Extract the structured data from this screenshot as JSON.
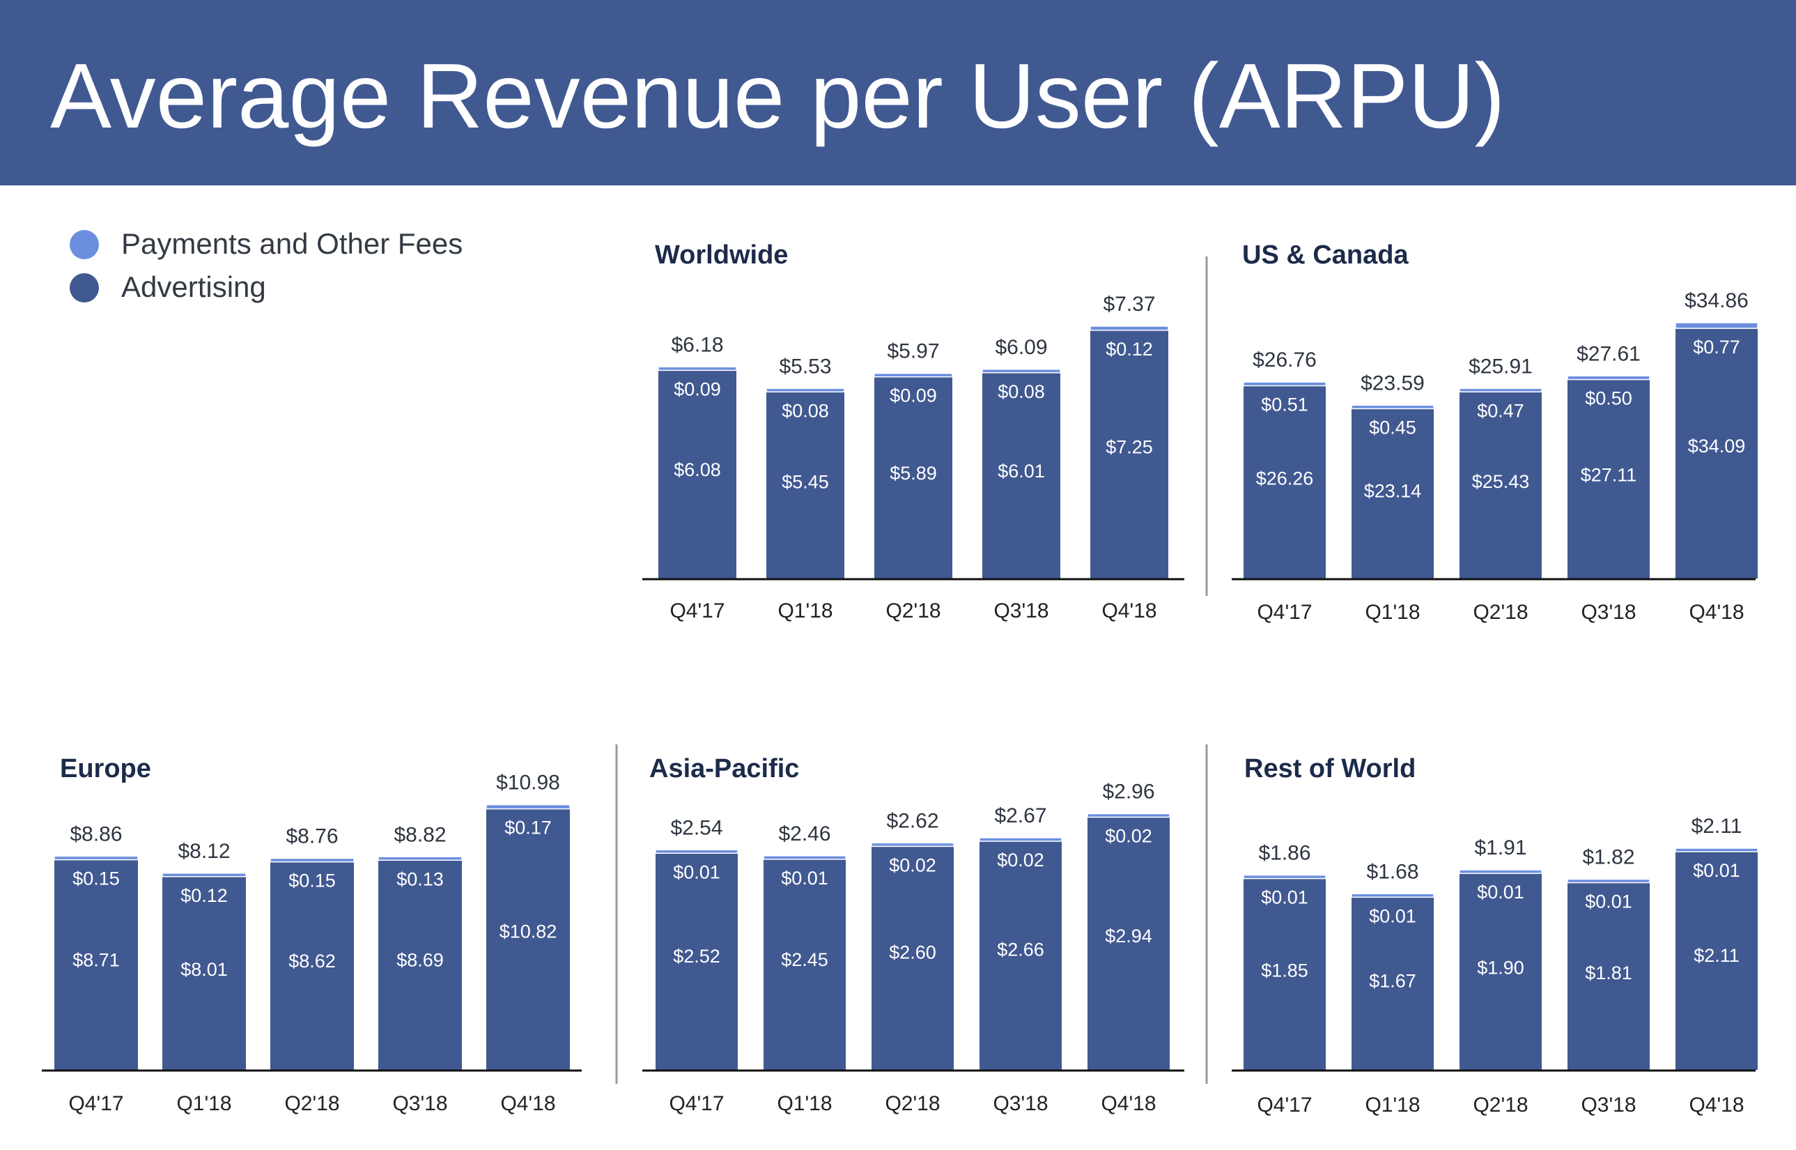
{
  "header": {
    "title": "Average Revenue per User (ARPU)"
  },
  "legend": {
    "items": [
      {
        "label": "Payments and Other Fees",
        "color": "#6b8fde"
      },
      {
        "label": "Advertising",
        "color": "#415991"
      }
    ]
  },
  "colors": {
    "advertising": "#415991",
    "payments": "#6b8fde",
    "header": "#415991"
  },
  "chart_data": [
    {
      "type": "bar",
      "stacked": true,
      "title": "Worldwide",
      "categories": [
        "Q4'17",
        "Q1'18",
        "Q2'18",
        "Q3'18",
        "Q4'18"
      ],
      "series": [
        {
          "name": "Advertising",
          "values": [
            6.08,
            5.45,
            5.89,
            6.01,
            7.25
          ],
          "labels": [
            "$6.08",
            "$5.45",
            "$5.89",
            "$6.01",
            "$7.25"
          ]
        },
        {
          "name": "Payments and Other Fees",
          "values": [
            0.09,
            0.08,
            0.09,
            0.08,
            0.12
          ],
          "labels": [
            "$0.09",
            "$0.08",
            "$0.09",
            "$0.08",
            "$0.12"
          ]
        }
      ],
      "totals": [
        6.18,
        5.53,
        5.97,
        6.09,
        7.37
      ],
      "total_labels": [
        "$6.18",
        "$5.53",
        "$5.97",
        "$6.09",
        "$7.37"
      ]
    },
    {
      "type": "bar",
      "stacked": true,
      "title": "US & Canada",
      "categories": [
        "Q4'17",
        "Q1'18",
        "Q2'18",
        "Q3'18",
        "Q4'18"
      ],
      "series": [
        {
          "name": "Advertising",
          "values": [
            26.26,
            23.14,
            25.43,
            27.11,
            34.09
          ],
          "labels": [
            "$26.26",
            "$23.14",
            "$25.43",
            "$27.11",
            "$34.09"
          ]
        },
        {
          "name": "Payments and Other Fees",
          "values": [
            0.51,
            0.45,
            0.47,
            0.5,
            0.77
          ],
          "labels": [
            "$0.51",
            "$0.45",
            "$0.47",
            "$0.50",
            "$0.77"
          ]
        }
      ],
      "totals": [
        26.76,
        23.59,
        25.91,
        27.61,
        34.86
      ],
      "total_labels": [
        "$26.76",
        "$23.59",
        "$25.91",
        "$27.61",
        "$34.86"
      ]
    },
    {
      "type": "bar",
      "stacked": true,
      "title": "Europe",
      "categories": [
        "Q4'17",
        "Q1'18",
        "Q2'18",
        "Q3'18",
        "Q4'18"
      ],
      "series": [
        {
          "name": "Advertising",
          "values": [
            8.71,
            8.01,
            8.62,
            8.69,
            10.82
          ],
          "labels": [
            "$8.71",
            "$8.01",
            "$8.62",
            "$8.69",
            "$10.82"
          ]
        },
        {
          "name": "Payments and Other Fees",
          "values": [
            0.15,
            0.12,
            0.15,
            0.13,
            0.17
          ],
          "labels": [
            "$0.15",
            "$0.12",
            "$0.15",
            "$0.13",
            "$0.17"
          ]
        }
      ],
      "totals": [
        8.86,
        8.12,
        8.76,
        8.82,
        10.98
      ],
      "total_labels": [
        "$8.86",
        "$8.12",
        "$8.76",
        "$8.82",
        "$10.98"
      ]
    },
    {
      "type": "bar",
      "stacked": true,
      "title": "Asia-Pacific",
      "categories": [
        "Q4'17",
        "Q1'18",
        "Q2'18",
        "Q3'18",
        "Q4'18"
      ],
      "series": [
        {
          "name": "Advertising",
          "values": [
            2.52,
            2.45,
            2.6,
            2.66,
            2.94
          ],
          "labels": [
            "$2.52",
            "$2.45",
            "$2.60",
            "$2.66",
            "$2.94"
          ]
        },
        {
          "name": "Payments and Other Fees",
          "values": [
            0.01,
            0.01,
            0.02,
            0.02,
            0.02
          ],
          "labels": [
            "$0.01",
            "$0.01",
            "$0.02",
            "$0.02",
            "$0.02"
          ]
        }
      ],
      "totals": [
        2.54,
        2.46,
        2.62,
        2.67,
        2.96
      ],
      "total_labels": [
        "$2.54",
        "$2.46",
        "$2.62",
        "$2.67",
        "$2.96"
      ]
    },
    {
      "type": "bar",
      "stacked": true,
      "title": "Rest of World",
      "categories": [
        "Q4'17",
        "Q1'18",
        "Q2'18",
        "Q3'18",
        "Q4'18"
      ],
      "series": [
        {
          "name": "Advertising",
          "values": [
            1.85,
            1.67,
            1.9,
            1.81,
            2.11
          ],
          "labels": [
            "$1.85",
            "$1.67",
            "$1.90",
            "$1.81",
            "$2.11"
          ]
        },
        {
          "name": "Payments and Other Fees",
          "values": [
            0.01,
            0.01,
            0.01,
            0.01,
            0.01
          ],
          "labels": [
            "$0.01",
            "$0.01",
            "$0.01",
            "$0.01",
            "$0.01"
          ]
        }
      ],
      "totals": [
        1.86,
        1.68,
        1.91,
        1.82,
        2.11
      ],
      "total_labels": [
        "$1.86",
        "$1.68",
        "$1.91",
        "$1.82",
        "$2.11"
      ]
    }
  ]
}
